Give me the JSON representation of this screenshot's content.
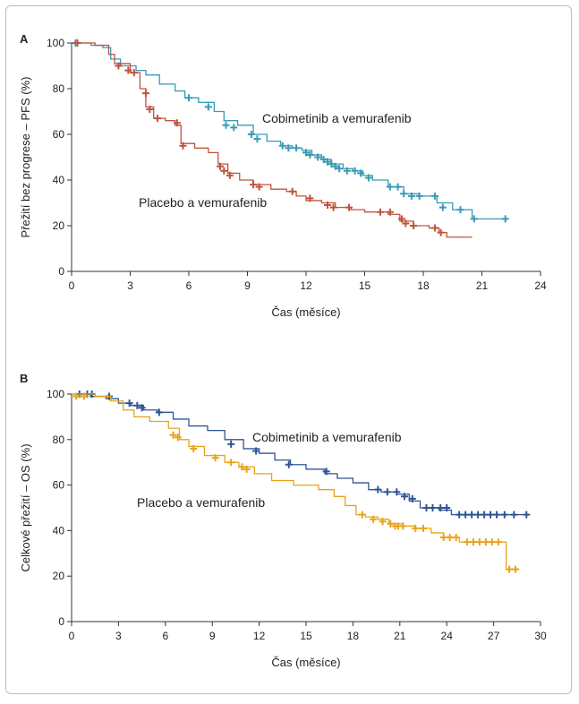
{
  "chart_data": [
    {
      "panel": "A",
      "type": "line",
      "step": true,
      "xlabel": "Čas (měsíce)",
      "ylabel": "Přežití bez progrese – PFS (%)",
      "xlim": [
        0,
        24
      ],
      "ylim": [
        0,
        100
      ],
      "xticks": [
        "0",
        "3",
        "6",
        "9",
        "12",
        "15",
        "18",
        "21",
        "24"
      ],
      "yticks": [
        "0",
        "20",
        "40",
        "60",
        "80",
        "100"
      ],
      "series": [
        {
          "name": "Cobimetinib a vemurafenib",
          "color": "#3a9ab6",
          "points": [
            [
              0,
              100
            ],
            [
              0.7,
              100
            ],
            [
              1.0,
              99
            ],
            [
              1.6,
              98
            ],
            [
              2.0,
              93
            ],
            [
              2.5,
              90
            ],
            [
              3.3,
              88
            ],
            [
              3.8,
              86
            ],
            [
              4.5,
              82
            ],
            [
              5.3,
              79
            ],
            [
              5.8,
              76
            ],
            [
              6.5,
              74
            ],
            [
              7.3,
              70
            ],
            [
              7.8,
              66
            ],
            [
              8.5,
              64
            ],
            [
              9.3,
              60
            ],
            [
              10.0,
              57
            ],
            [
              10.7,
              55
            ],
            [
              11.3,
              54
            ],
            [
              11.8,
              53
            ],
            [
              12.3,
              51
            ],
            [
              12.8,
              49
            ],
            [
              13.3,
              47
            ],
            [
              13.9,
              45
            ],
            [
              14.4,
              44
            ],
            [
              14.9,
              42
            ],
            [
              15.4,
              40
            ],
            [
              16.2,
              37
            ],
            [
              17.0,
              34
            ],
            [
              17.8,
              33
            ],
            [
              18.7,
              30
            ],
            [
              19.5,
              27
            ],
            [
              20.5,
              23
            ],
            [
              22.2,
              23
            ]
          ],
          "censored": [
            [
              0.2,
              100
            ],
            [
              6.0,
              76
            ],
            [
              7.0,
              72
            ],
            [
              7.9,
              64
            ],
            [
              8.3,
              63
            ],
            [
              9.2,
              60
            ],
            [
              9.5,
              58
            ],
            [
              10.8,
              55
            ],
            [
              11.1,
              54
            ],
            [
              11.5,
              54
            ],
            [
              12.0,
              52
            ],
            [
              12.2,
              51
            ],
            [
              12.6,
              50
            ],
            [
              12.9,
              49
            ],
            [
              13.1,
              48
            ],
            [
              13.3,
              47
            ],
            [
              13.5,
              46
            ],
            [
              13.7,
              45
            ],
            [
              14.1,
              44
            ],
            [
              14.5,
              44
            ],
            [
              14.8,
              43
            ],
            [
              15.2,
              41
            ],
            [
              16.3,
              37
            ],
            [
              16.7,
              37
            ],
            [
              17.0,
              34
            ],
            [
              17.4,
              33
            ],
            [
              17.8,
              33
            ],
            [
              18.6,
              33
            ],
            [
              19.0,
              28
            ],
            [
              19.9,
              27
            ],
            [
              20.6,
              23
            ],
            [
              22.2,
              23
            ]
          ]
        },
        {
          "name": "Placebo a vemurafenib",
          "color": "#c0533d",
          "points": [
            [
              0,
              100
            ],
            [
              1.2,
              99
            ],
            [
              1.9,
              95
            ],
            [
              2.2,
              91
            ],
            [
              3.0,
              87
            ],
            [
              3.5,
              80
            ],
            [
              3.8,
              72
            ],
            [
              4.2,
              67
            ],
            [
              4.8,
              66
            ],
            [
              5.3,
              64
            ],
            [
              5.6,
              56
            ],
            [
              6.3,
              54
            ],
            [
              7.0,
              52
            ],
            [
              7.5,
              47
            ],
            [
              8.0,
              43
            ],
            [
              8.6,
              40
            ],
            [
              9.3,
              38
            ],
            [
              10.2,
              36
            ],
            [
              11.0,
              35
            ],
            [
              11.5,
              33
            ],
            [
              12.0,
              31
            ],
            [
              12.8,
              30
            ],
            [
              13.5,
              28
            ],
            [
              14.3,
              27
            ],
            [
              15.0,
              26
            ],
            [
              16.2,
              25
            ],
            [
              16.8,
              22
            ],
            [
              17.5,
              20
            ],
            [
              18.3,
              19
            ],
            [
              18.8,
              17
            ],
            [
              19.2,
              15
            ],
            [
              20.5,
              15
            ]
          ],
          "censored": [
            [
              0.3,
              100
            ],
            [
              2.4,
              90
            ],
            [
              2.9,
              88
            ],
            [
              3.2,
              87
            ],
            [
              3.8,
              78
            ],
            [
              4.0,
              71
            ],
            [
              4.4,
              67
            ],
            [
              5.4,
              65
            ],
            [
              5.7,
              55
            ],
            [
              7.6,
              46
            ],
            [
              7.8,
              44
            ],
            [
              8.1,
              42
            ],
            [
              9.3,
              38
            ],
            [
              9.6,
              37
            ],
            [
              11.3,
              35
            ],
            [
              12.2,
              32
            ],
            [
              13.1,
              29
            ],
            [
              13.4,
              28
            ],
            [
              14.2,
              28
            ],
            [
              15.8,
              26
            ],
            [
              16.3,
              26
            ],
            [
              16.9,
              23
            ],
            [
              17.1,
              21
            ],
            [
              17.5,
              20
            ],
            [
              18.6,
              19
            ],
            [
              18.9,
              17
            ]
          ]
        }
      ]
    },
    {
      "panel": "B",
      "type": "line",
      "step": true,
      "xlabel": "Čas (měsíce)",
      "ylabel": "Celkové přežití – OS (%)",
      "xlim": [
        0,
        30
      ],
      "ylim": [
        0,
        100
      ],
      "xticks": [
        "0",
        "3",
        "6",
        "9",
        "12",
        "15",
        "18",
        "21",
        "24",
        "27",
        "30"
      ],
      "yticks": [
        "0",
        "20",
        "40",
        "60",
        "80",
        "100"
      ],
      "series": [
        {
          "name": "Cobimetinib a vemurafenib",
          "color": "#2f5597",
          "points": [
            [
              0,
              100
            ],
            [
              1.2,
              99
            ],
            [
              2.2,
              98
            ],
            [
              3.0,
              96
            ],
            [
              3.8,
              95
            ],
            [
              4.6,
              93
            ],
            [
              5.5,
              92
            ],
            [
              6.5,
              89
            ],
            [
              7.5,
              86
            ],
            [
              8.7,
              84
            ],
            [
              9.8,
              80
            ],
            [
              11.0,
              76
            ],
            [
              12.0,
              74
            ],
            [
              13.0,
              71
            ],
            [
              14.0,
              69
            ],
            [
              15.0,
              67
            ],
            [
              16.2,
              65
            ],
            [
              17.0,
              63
            ],
            [
              18.0,
              61
            ],
            [
              19.0,
              58
            ],
            [
              19.8,
              57
            ],
            [
              20.8,
              56
            ],
            [
              21.6,
              53
            ],
            [
              22.3,
              50
            ],
            [
              23.5,
              49
            ],
            [
              24.3,
              47
            ],
            [
              29.0,
              47
            ]
          ],
          "censored": [
            [
              0.5,
              100
            ],
            [
              1.0,
              100
            ],
            [
              1.3,
              100
            ],
            [
              2.4,
              99
            ],
            [
              3.7,
              96
            ],
            [
              4.2,
              95
            ],
            [
              4.5,
              94
            ],
            [
              5.6,
              92
            ],
            [
              10.2,
              78
            ],
            [
              11.8,
              75
            ],
            [
              13.9,
              69
            ],
            [
              16.3,
              66
            ],
            [
              19.6,
              58
            ],
            [
              20.2,
              57
            ],
            [
              20.8,
              57
            ],
            [
              21.3,
              55
            ],
            [
              21.8,
              54
            ],
            [
              22.7,
              50
            ],
            [
              23.1,
              50
            ],
            [
              23.6,
              50
            ],
            [
              24.0,
              50
            ],
            [
              24.8,
              47
            ],
            [
              25.2,
              47
            ],
            [
              25.6,
              47
            ],
            [
              26.0,
              47
            ],
            [
              26.4,
              47
            ],
            [
              26.8,
              47
            ],
            [
              27.2,
              47
            ],
            [
              27.7,
              47
            ],
            [
              28.3,
              47
            ],
            [
              29.1,
              47
            ]
          ]
        },
        {
          "name": "Placebo a vemurafenib",
          "color": "#e8a31a",
          "points": [
            [
              0,
              100
            ],
            [
              1.5,
              99
            ],
            [
              2.5,
              97
            ],
            [
              3.3,
              93
            ],
            [
              4.0,
              90
            ],
            [
              5.0,
              88
            ],
            [
              6.2,
              85
            ],
            [
              6.9,
              80
            ],
            [
              7.5,
              77
            ],
            [
              8.5,
              73
            ],
            [
              9.8,
              70
            ],
            [
              10.7,
              68
            ],
            [
              11.7,
              65
            ],
            [
              12.8,
              62
            ],
            [
              14.2,
              60
            ],
            [
              15.8,
              58
            ],
            [
              16.8,
              55
            ],
            [
              17.5,
              51
            ],
            [
              18.2,
              47
            ],
            [
              18.8,
              46
            ],
            [
              19.6,
              45
            ],
            [
              20.3,
              43
            ],
            [
              21.2,
              42
            ],
            [
              22.0,
              41
            ],
            [
              23.0,
              39
            ],
            [
              23.8,
              37
            ],
            [
              24.8,
              35
            ],
            [
              27.5,
              35
            ],
            [
              27.8,
              23
            ],
            [
              28.3,
              23
            ]
          ],
          "censored": [
            [
              0.3,
              99
            ],
            [
              0.8,
              99
            ],
            [
              6.5,
              82
            ],
            [
              6.8,
              81
            ],
            [
              7.8,
              76
            ],
            [
              9.2,
              72
            ],
            [
              10.2,
              70
            ],
            [
              10.9,
              68
            ],
            [
              11.2,
              67
            ],
            [
              18.6,
              47
            ],
            [
              19.3,
              45
            ],
            [
              19.9,
              44
            ],
            [
              20.4,
              43
            ],
            [
              20.7,
              42
            ],
            [
              20.9,
              42
            ],
            [
              21.2,
              42
            ],
            [
              22.0,
              41
            ],
            [
              22.5,
              41
            ],
            [
              23.8,
              37
            ],
            [
              24.2,
              37
            ],
            [
              24.6,
              37
            ],
            [
              25.3,
              35
            ],
            [
              25.7,
              35
            ],
            [
              26.1,
              35
            ],
            [
              26.5,
              35
            ],
            [
              26.9,
              35
            ],
            [
              27.3,
              35
            ],
            [
              28.0,
              23
            ],
            [
              28.4,
              23
            ]
          ]
        }
      ]
    }
  ]
}
